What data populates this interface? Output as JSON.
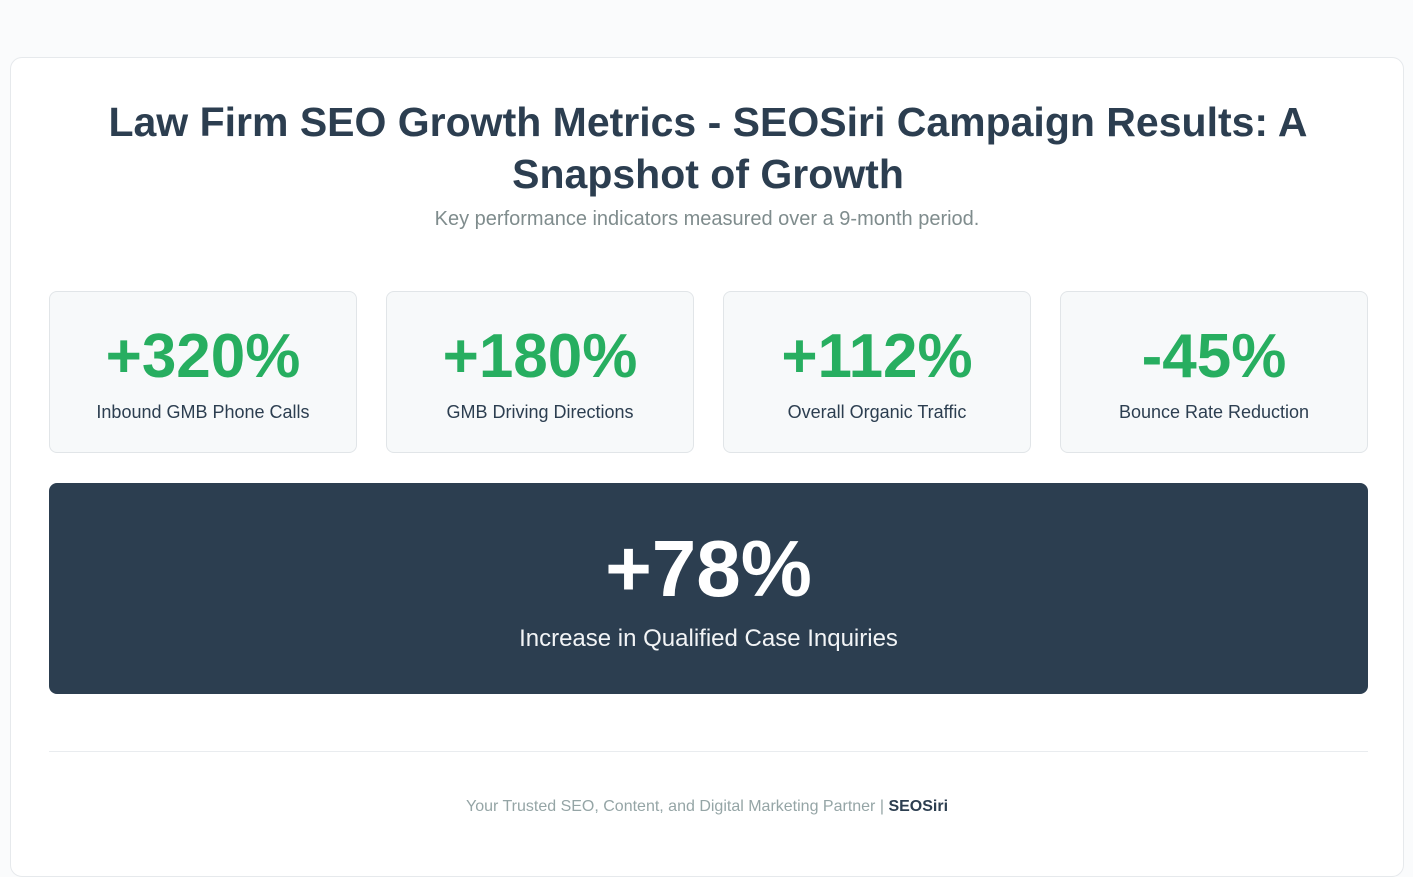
{
  "header": {
    "title": "Law Firm SEO Growth Metrics - SEOSiri Campaign Results: A Snapshot of Growth",
    "subtitle": "Key performance indicators measured over a 9-month period."
  },
  "metrics": [
    {
      "value": "+320%",
      "label": "Inbound GMB Phone Calls"
    },
    {
      "value": "+180%",
      "label": "GMB Driving Directions"
    },
    {
      "value": "+112%",
      "label": "Overall Organic Traffic"
    },
    {
      "value": "-45%",
      "label": "Bounce Rate Reduction"
    }
  ],
  "highlight": {
    "value": "+78%",
    "label": "Increase in Qualified Case Inquiries"
  },
  "footer": {
    "text": "Your Trusted SEO, Content, and Digital Marketing Partner |",
    "brand": "SEOSiri"
  }
}
